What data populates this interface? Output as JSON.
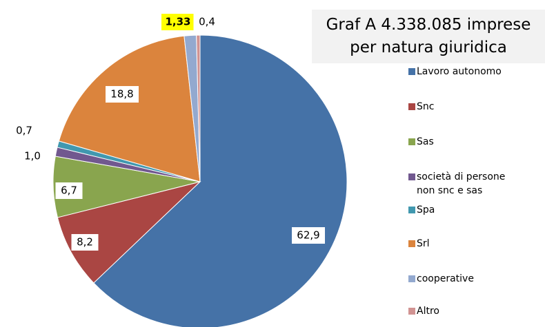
{
  "chart_data": {
    "type": "pie",
    "title": "Graf A   4.338.085 imprese per natura giuridica",
    "categories": [
      "Lavoro autonomo",
      "Snc",
      "Sas",
      "società di persone non snc e sas",
      "Spa",
      "Srl",
      "cooperative",
      "Altro"
    ],
    "values": [
      62.9,
      8.2,
      6.7,
      1.0,
      0.7,
      18.8,
      1.33,
      0.4
    ],
    "value_labels": [
      "62,9",
      "8,2",
      "6,7",
      "1,0",
      "0,7",
      "18,8",
      "1,33",
      "0,4"
    ],
    "colors": [
      "#4572a7",
      "#aa4643",
      "#89a54e",
      "#71588f",
      "#4198af",
      "#db843d",
      "#93a9cf",
      "#d19392"
    ],
    "legend": "right"
  }
}
